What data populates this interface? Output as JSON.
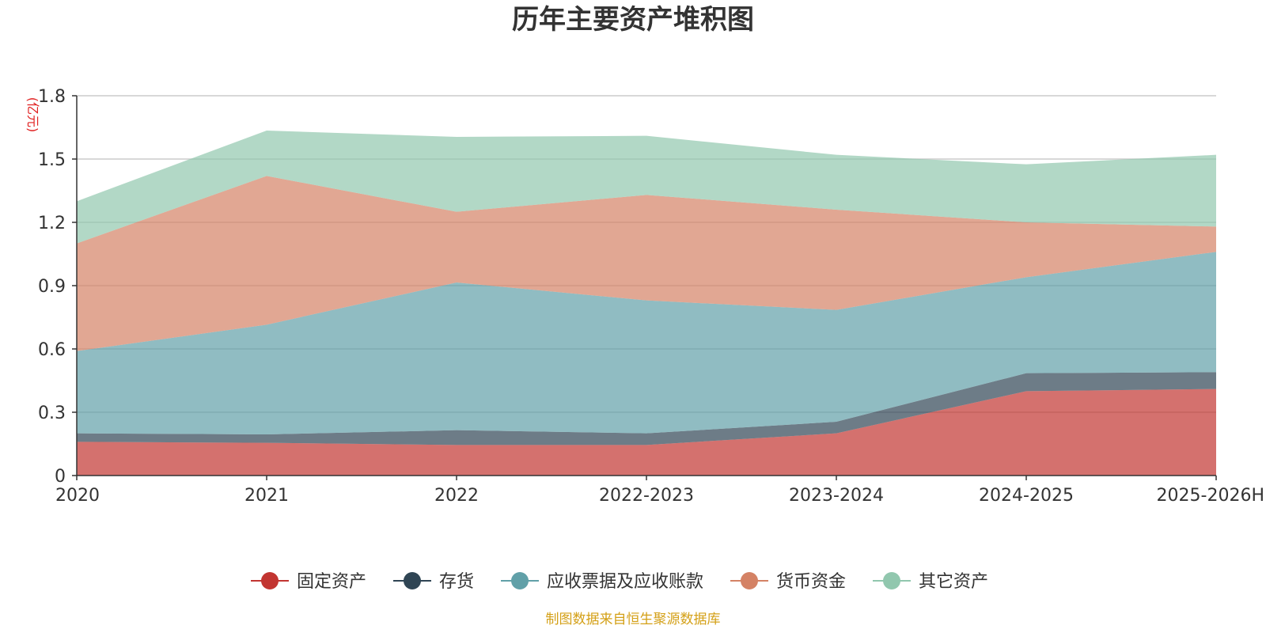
{
  "chart_data": {
    "type": "area",
    "stacked": true,
    "title": "历年主要资产堆积图",
    "ylabel": "(亿元)",
    "xlabel": "",
    "categories": [
      "2020",
      "2021",
      "2022",
      "2022-2023",
      "2023-2024",
      "2024-2025",
      "2025-2026H"
    ],
    "ylim": [
      0,
      1.8
    ],
    "yticks": [
      "0",
      "0.3",
      "0.6",
      "0.9",
      "1.2",
      "1.5",
      "1.8"
    ],
    "ytick_values": [
      0,
      0.3,
      0.6,
      0.9,
      1.2,
      1.5,
      1.8
    ],
    "grid": true,
    "legend_position": "bottom",
    "series": [
      {
        "name": "固定资产",
        "color": "#c23531",
        "values": [
          0.16,
          0.155,
          0.145,
          0.145,
          0.2,
          0.4,
          0.41
        ]
      },
      {
        "name": "存货",
        "color": "#2f4554",
        "values": [
          0.04,
          0.04,
          0.07,
          0.055,
          0.055,
          0.085,
          0.08
        ]
      },
      {
        "name": "应收票据及应收账款",
        "color": "#61a0a8",
        "values": [
          0.39,
          0.52,
          0.7,
          0.63,
          0.53,
          0.455,
          0.57
        ]
      },
      {
        "name": "货币资金",
        "color": "#d48265",
        "values": [
          0.51,
          0.705,
          0.335,
          0.5,
          0.475,
          0.26,
          0.12
        ]
      },
      {
        "name": "其它资产",
        "color": "#91c7ae",
        "values": [
          0.2,
          0.215,
          0.355,
          0.28,
          0.26,
          0.275,
          0.34
        ]
      }
    ]
  },
  "footer": {
    "source": "制图数据来自恒生聚源数据库",
    "source_color": "#d4a017"
  },
  "unit_color": "#e02020"
}
